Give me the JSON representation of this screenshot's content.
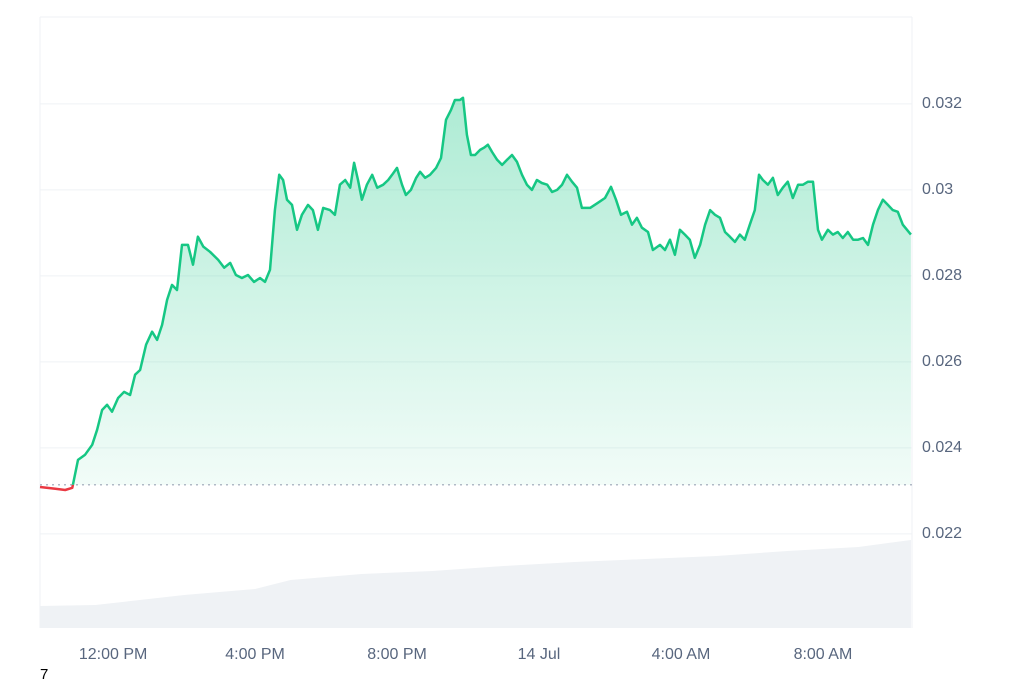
{
  "chart_data": {
    "type": "line",
    "x": [
      9.94,
      10.37,
      10.65,
      10.85,
      11.01,
      11.21,
      11.41,
      11.55,
      11.69,
      11.83,
      11.97,
      12.14,
      12.31,
      12.48,
      12.62,
      12.76,
      12.93,
      13.1,
      13.24,
      13.38,
      13.52,
      13.66,
      13.8,
      13.94,
      14.11,
      14.25,
      14.39,
      14.54,
      14.73,
      14.96,
      15.13,
      15.3,
      15.46,
      15.63,
      15.8,
      15.97,
      16.14,
      16.28,
      16.42,
      16.56,
      16.68,
      16.79,
      16.9,
      17.04,
      17.18,
      17.32,
      17.49,
      17.63,
      17.77,
      17.92,
      18.11,
      18.25,
      18.39,
      18.54,
      18.68,
      18.79,
      18.9,
      19.01,
      19.15,
      19.3,
      19.44,
      19.61,
      19.75,
      19.86,
      20.0,
      20.14,
      20.25,
      20.39,
      20.54,
      20.65,
      20.79,
      20.93,
      21.1,
      21.24,
      21.38,
      21.52,
      21.63,
      21.77,
      21.86,
      21.97,
      22.08,
      22.2,
      22.34,
      22.45,
      22.56,
      22.68,
      22.82,
      22.96,
      23.1,
      23.24,
      23.38,
      23.52,
      23.66,
      23.8,
      23.94,
      24.08,
      24.23,
      24.37,
      24.51,
      24.65,
      24.79,
      24.93,
      25.07,
      25.21,
      25.44,
      25.66,
      25.86,
      26.03,
      26.17,
      26.31,
      26.48,
      26.62,
      26.76,
      26.9,
      27.07,
      27.21,
      27.41,
      27.55,
      27.69,
      27.83,
      27.97,
      28.11,
      28.25,
      28.39,
      28.54,
      28.68,
      28.82,
      28.96,
      29.1,
      29.24,
      29.38,
      29.52,
      29.66,
      29.8,
      29.94,
      30.08,
      30.2,
      30.31,
      30.45,
      30.59,
      30.73,
      30.87,
      31.01,
      31.15,
      31.3,
      31.44,
      31.58,
      31.72,
      31.86,
      31.97,
      32.14,
      32.28,
      32.42,
      32.56,
      32.7,
      32.85,
      32.99,
      33.13,
      33.27,
      33.41,
      33.55,
      33.69,
      33.83,
      33.97,
      34.11,
      34.25,
      34.48
    ],
    "series": [
      {
        "color": "#16c784",
        "below_color": "#ea3943",
        "values": [
          0.02309,
          0.02305,
          0.02302,
          0.02307,
          0.02372,
          0.02384,
          0.02407,
          0.02442,
          0.02488,
          0.025,
          0.02484,
          0.02516,
          0.0253,
          0.02523,
          0.0257,
          0.02581,
          0.0264,
          0.0267,
          0.02651,
          0.02686,
          0.02744,
          0.02779,
          0.02767,
          0.02872,
          0.02872,
          0.02826,
          0.02891,
          0.02868,
          0.02856,
          0.02837,
          0.02819,
          0.0283,
          0.02802,
          0.02795,
          0.02802,
          0.02786,
          0.02795,
          0.02786,
          0.02814,
          0.02953,
          0.03035,
          0.03023,
          0.02977,
          0.02965,
          0.02907,
          0.02942,
          0.02965,
          0.02953,
          0.02907,
          0.02958,
          0.02953,
          0.02942,
          0.03012,
          0.03023,
          0.03005,
          0.03063,
          0.03023,
          0.02977,
          0.03012,
          0.03035,
          0.03005,
          0.03012,
          0.03023,
          0.03035,
          0.03051,
          0.03012,
          0.02988,
          0.03,
          0.03028,
          0.03042,
          0.03028,
          0.03035,
          0.03051,
          0.03074,
          0.03163,
          0.03186,
          0.03209,
          0.03209,
          0.03214,
          0.03128,
          0.03081,
          0.03081,
          0.03093,
          0.03098,
          0.03105,
          0.03088,
          0.0307,
          0.03058,
          0.0307,
          0.03081,
          0.03065,
          0.03035,
          0.03012,
          0.03,
          0.03023,
          0.03016,
          0.03012,
          0.02995,
          0.03,
          0.03012,
          0.03035,
          0.03019,
          0.03005,
          0.02958,
          0.02958,
          0.0297,
          0.02981,
          0.03007,
          0.02977,
          0.02942,
          0.02949,
          0.02919,
          0.02935,
          0.02912,
          0.02902,
          0.0286,
          0.02872,
          0.0286,
          0.02884,
          0.02849,
          0.02907,
          0.02896,
          0.02884,
          0.02842,
          0.02872,
          0.02919,
          0.02953,
          0.02942,
          0.02935,
          0.02902,
          0.02891,
          0.02879,
          0.02896,
          0.02884,
          0.02919,
          0.02953,
          0.03035,
          0.03023,
          0.03012,
          0.03028,
          0.02988,
          0.03005,
          0.03019,
          0.02981,
          0.03012,
          0.03012,
          0.03019,
          0.03019,
          0.02907,
          0.02884,
          0.02907,
          0.02896,
          0.02902,
          0.02888,
          0.02902,
          0.02884,
          0.02884,
          0.02888,
          0.02872,
          0.02919,
          0.02953,
          0.02977,
          0.02965,
          0.02953,
          0.02949,
          0.02919,
          0.02896
        ]
      }
    ],
    "reference_line": 0.02314,
    "volume": {
      "color": "#eff2f5",
      "x": [
        9.94,
        11.5,
        12.5,
        14,
        16,
        17,
        19,
        21,
        23,
        25,
        27,
        29,
        31,
        33,
        34.48
      ],
      "values": [
        22,
        23,
        27,
        33,
        39,
        48,
        54,
        57,
        62,
        66,
        69,
        72,
        77,
        81,
        88
      ],
      "lim": [
        0,
        100
      ]
    },
    "xlim": [
      9.94,
      34.51
    ],
    "xticks": [
      {
        "value": 12,
        "label": "12:00 PM"
      },
      {
        "value": 16,
        "label": "4:00 PM"
      },
      {
        "value": 20,
        "label": "8:00 PM"
      },
      {
        "value": 24,
        "label": "14 Jul"
      },
      {
        "value": 28,
        "label": "4:00 AM"
      },
      {
        "value": 32,
        "label": "8:00 AM"
      }
    ],
    "ylim": [
      0.01981,
      0.03402
    ],
    "yticks": [
      0.022,
      0.024,
      0.026,
      0.028,
      0.03,
      0.032
    ],
    "grid": true,
    "note": "7"
  }
}
